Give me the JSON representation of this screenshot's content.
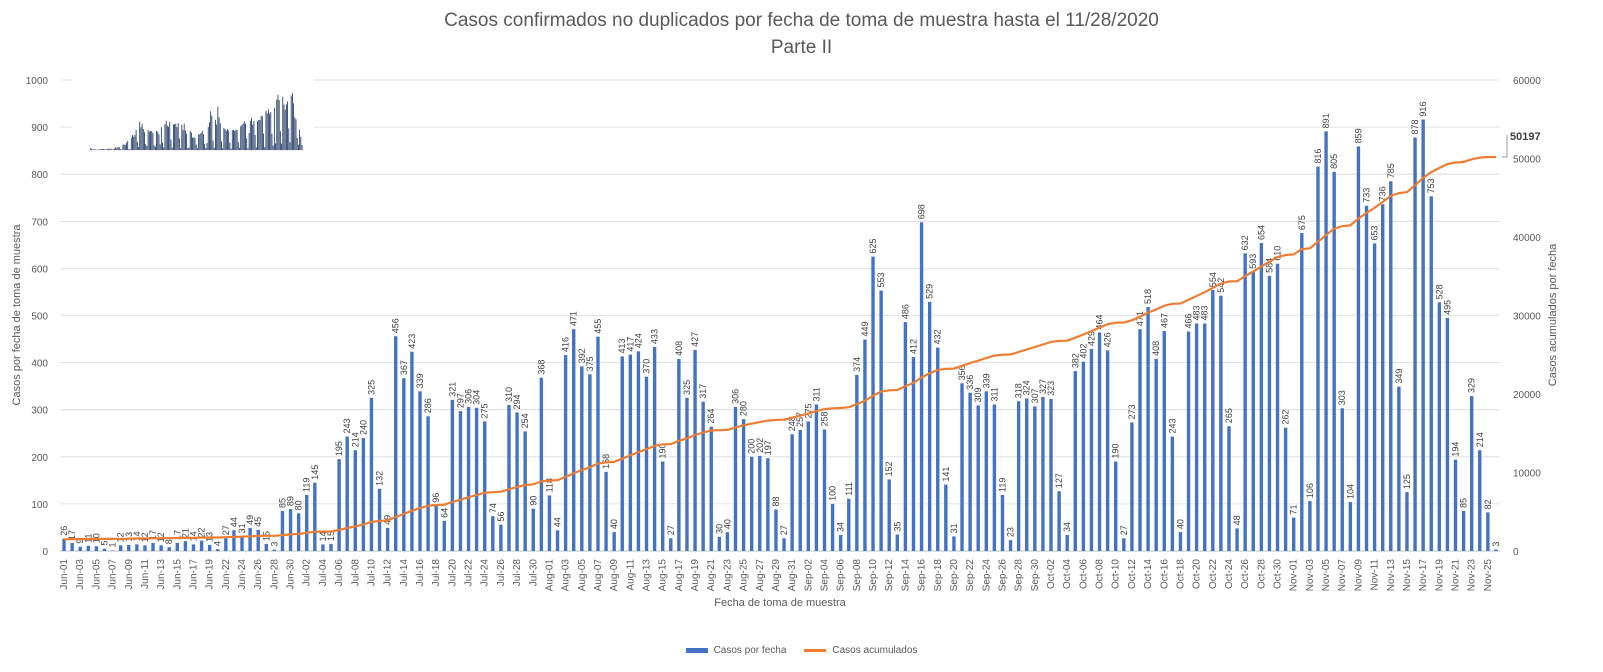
{
  "chart_data": {
    "type": "bar",
    "title": "Casos confirmados no duplicados por fecha de toma de muestra hasta el 11/28/2020",
    "subtitle": "Parte II",
    "xlabel": "Fecha de toma de muestra",
    "ylabel": "Casos por fecha de toma de muestra",
    "y2label": "Casos acumulados por fecha",
    "ylim": [
      0,
      1000
    ],
    "y2lim": [
      0,
      60000
    ],
    "yticks": [
      "0",
      "100",
      "200",
      "300",
      "400",
      "500",
      "600",
      "700",
      "800",
      "900",
      "1000"
    ],
    "y2ticks": [
      "0",
      "10000",
      "20000",
      "30000",
      "40000",
      "50000",
      "60000"
    ],
    "grid": true,
    "legend_position": "bottom",
    "final_total_label": "50197",
    "x_tick_labels": [
      "Jun-01",
      "Jun-03",
      "Jun-05",
      "Jun-07",
      "Jun-09",
      "Jun-11",
      "Jun-13",
      "Jun-15",
      "Jun-17",
      "Jun-19",
      "Jun-22",
      "Jun-24",
      "Jun-26",
      "Jun-28",
      "Jun-30",
      "Jul-02",
      "Jul-04",
      "Jul-06",
      "Jul-08",
      "Jul-10",
      "Jul-12",
      "Jul-14",
      "Jul-16",
      "Jul-18",
      "Jul-20",
      "Jul-22",
      "Jul-24",
      "Jul-26",
      "Jul-28",
      "Jul-30",
      "Aug-01",
      "Aug-03",
      "Aug-05",
      "Aug-07",
      "Aug-09",
      "Aug-11",
      "Aug-13",
      "Aug-15",
      "Aug-17",
      "Aug-19",
      "Aug-21",
      "Aug-23",
      "Aug-25",
      "Aug-27",
      "Aug-29",
      "Aug-31",
      "Sep-02",
      "Sep-04",
      "Sep-06",
      "Sep-08",
      "Sep-10",
      "Sep-12",
      "Sep-14",
      "Sep-16",
      "Sep-18",
      "Sep-20",
      "Sep-22",
      "Sep-24",
      "Sep-26",
      "Sep-28",
      "Sep-30",
      "Oct-02",
      "Oct-04",
      "Oct-06",
      "Oct-08",
      "Oct-10",
      "Oct-12",
      "Oct-14",
      "Oct-16",
      "Oct-18",
      "Oct-20",
      "Oct-22",
      "Oct-24",
      "Oct-26",
      "Oct-28",
      "Oct-30",
      "Nov-01",
      "Nov-03",
      "Nov-05",
      "Nov-07",
      "Nov-09",
      "Nov-11",
      "Nov-13",
      "Nov-15",
      "Nov-17",
      "Nov-19",
      "Nov-21",
      "Nov-23",
      "Nov-25"
    ],
    "series": [
      {
        "name": "Casos por fecha",
        "color": "#4472C4",
        "values": [
          26,
          17,
          9,
          11,
          10,
          5,
          1,
          12,
          13,
          14,
          12,
          17,
          12,
          8,
          17,
          21,
          14,
          22,
          13,
          4,
          27,
          44,
          31,
          49,
          45,
          15,
          3,
          85,
          89,
          80,
          119,
          145,
          14,
          15,
          195,
          243,
          214,
          240,
          325,
          132,
          49,
          456,
          367,
          423,
          339,
          286,
          96,
          64,
          321,
          297,
          306,
          304,
          275,
          74,
          56,
          310,
          294,
          254,
          90,
          368,
          118,
          44,
          416,
          471,
          392,
          375,
          455,
          168,
          40,
          413,
          417,
          424,
          370,
          433,
          190,
          27,
          408,
          325,
          427,
          317,
          264,
          30,
          40,
          306,
          280,
          200,
          202,
          197,
          88,
          27,
          248,
          257,
          275,
          311,
          258,
          100,
          34,
          111,
          374,
          449,
          625,
          553,
          152,
          35,
          486,
          412,
          698,
          529,
          432,
          141,
          31,
          356,
          336,
          309,
          339,
          311,
          119,
          23,
          318,
          324,
          307,
          327,
          323,
          127,
          34,
          382,
          402,
          429,
          464,
          426,
          190,
          27,
          273,
          471,
          518,
          408,
          467,
          243,
          40,
          466,
          483,
          483,
          554,
          542,
          265,
          48,
          632,
          593,
          654,
          584,
          610,
          262,
          71,
          675,
          106,
          816,
          891,
          805,
          303,
          104,
          859,
          733,
          653,
          736,
          785,
          349,
          125,
          878,
          916,
          753,
          528,
          495,
          194,
          85,
          329,
          214,
          82,
          3
        ]
      },
      {
        "name": "Casos acumulados",
        "color": "#ED7D31",
        "values": []
      }
    ]
  }
}
